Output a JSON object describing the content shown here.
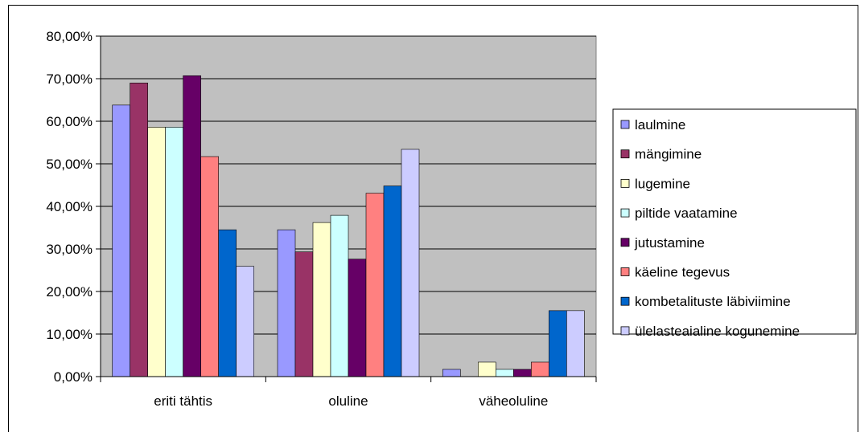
{
  "chart_data": {
    "type": "bar",
    "categories": [
      "eriti tähtis",
      "oluline",
      "väheoluline"
    ],
    "series": [
      {
        "name": "laulmine",
        "color": "#9999ff",
        "values": [
          63.8,
          34.5,
          1.7
        ]
      },
      {
        "name": "mängimine",
        "color": "#993366",
        "values": [
          69.0,
          29.3,
          0.0
        ]
      },
      {
        "name": "lugemine",
        "color": "#ffffcc",
        "values": [
          58.6,
          36.2,
          3.4
        ]
      },
      {
        "name": "piltide vaatamine",
        "color": "#ccffff",
        "values": [
          58.6,
          37.9,
          1.7
        ]
      },
      {
        "name": "jutustamine",
        "color": "#660066",
        "values": [
          70.7,
          27.6,
          1.7
        ]
      },
      {
        "name": "käeline tegevus",
        "color": "#ff8080",
        "values": [
          51.7,
          43.1,
          3.4
        ]
      },
      {
        "name": "kombetalituste läbiviimine",
        "color": "#0066cc",
        "values": [
          34.5,
          44.8,
          15.5
        ]
      },
      {
        "name": "ülelasteaialine kogunemine",
        "color": "#ccccff",
        "values": [
          25.9,
          53.4,
          15.5
        ]
      }
    ],
    "y_ticks": [
      "0,00%",
      "10,00%",
      "20,00%",
      "30,00%",
      "40,00%",
      "50,00%",
      "60,00%",
      "70,00%",
      "80,00%"
    ],
    "ylim": [
      0,
      80
    ],
    "grid": true,
    "legend_position": "right",
    "plot_background": "#c0c0c0"
  }
}
